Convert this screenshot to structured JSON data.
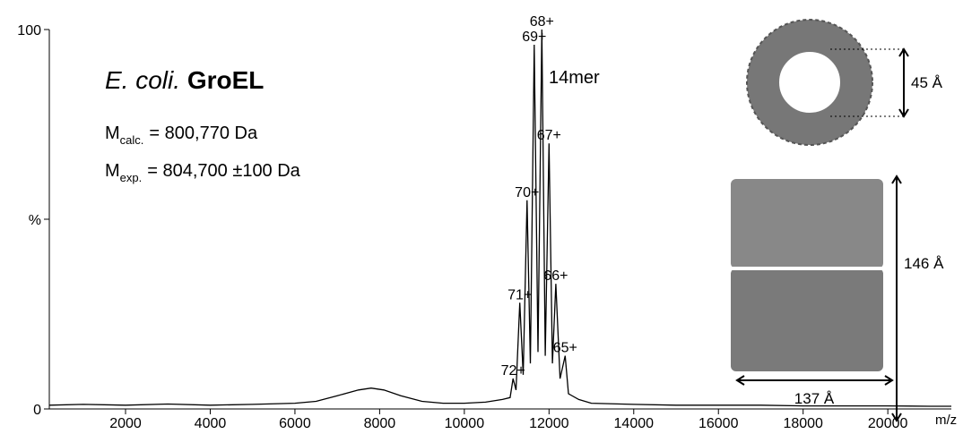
{
  "chart_data": {
    "type": "line",
    "title_italic": "E. coli.",
    "title_bold": "GroEL",
    "mass_calc": {
      "symbol": "M",
      "subscript": "calc.",
      "text": "= 800,770 Da"
    },
    "mass_exp": {
      "symbol": "M",
      "subscript": "exp.",
      "text": "= 804,700 ±100 Da"
    },
    "oligomer_label": "14mer",
    "x_label": "m/z",
    "structure_labels": {
      "pore": "45 Å",
      "height": "146 Å",
      "width": "137 Å"
    },
    "x": [
      200,
      1000,
      2000,
      3000,
      4000,
      5000,
      6000,
      6500,
      7000,
      7500,
      7800,
      8100,
      8500,
      9000,
      9500,
      10000,
      10500,
      10900,
      11080,
      11150,
      11220,
      11310,
      11390,
      11480,
      11560,
      11650,
      11740,
      11830,
      11910,
      12000,
      12080,
      12160,
      12260,
      12380,
      12460,
      12700,
      13000,
      14000,
      15000,
      16000,
      17000,
      18000,
      19000,
      20000,
      21000,
      21500
    ],
    "series": [
      {
        "color": "#000000",
        "values": [
          1,
          1.2,
          1,
          1.3,
          1,
          1.2,
          1.5,
          2,
          3.5,
          5,
          5.5,
          5,
          3.5,
          2,
          1.5,
          1.5,
          1.8,
          2.5,
          3,
          8,
          5,
          28,
          9,
          55,
          12,
          96,
          15,
          100,
          14,
          70,
          12,
          33,
          8,
          14,
          4,
          2.5,
          1.5,
          1.2,
          1,
          1,
          1,
          0.8,
          0.8,
          0.8,
          0.7,
          0.7
        ]
      }
    ],
    "peak_labels": [
      {
        "text": "72+",
        "x": 11150,
        "y": 8
      },
      {
        "text": "71+",
        "x": 11310,
        "y": 28
      },
      {
        "text": "70+",
        "x": 11480,
        "y": 55
      },
      {
        "text": "69+",
        "x": 11650,
        "y": 96
      },
      {
        "text": "68+",
        "x": 11830,
        "y": 100
      },
      {
        "text": "67+",
        "x": 12000,
        "y": 70
      },
      {
        "text": "66+",
        "x": 12160,
        "y": 33
      },
      {
        "text": "65+",
        "x": 12380,
        "y": 14
      }
    ],
    "xlim": [
      200,
      21500
    ],
    "ylim": [
      0,
      100
    ],
    "xticks": [
      2000,
      4000,
      6000,
      8000,
      10000,
      12000,
      14000,
      16000,
      18000,
      20000
    ],
    "yticks": [
      0,
      {
        "value": 50,
        "label": "%"
      },
      100
    ]
  }
}
